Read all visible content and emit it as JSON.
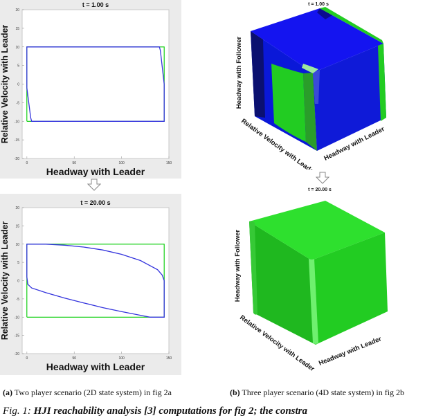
{
  "chart_data": [
    {
      "type": "line",
      "title": "t = 1.00 s",
      "xlabel": "Headway with Leader",
      "ylabel": "Relative Velocity with Leader",
      "xlim": [
        -5,
        150
      ],
      "ylim": [
        -20,
        20
      ],
      "xticks": [
        "0",
        "50",
        "100",
        "150"
      ],
      "yticks": [
        "20",
        "15",
        "10",
        "5",
        "0",
        "-5",
        "-10",
        "-15",
        "-20"
      ],
      "series": [
        {
          "color": "#00cc00",
          "points": [
            [
              0,
              -10
            ],
            [
              0,
              10
            ],
            [
              145,
              10
            ],
            [
              145,
              -10
            ],
            [
              0,
              -10
            ]
          ]
        },
        {
          "color": "#3333dd",
          "points": [
            [
              0,
              -1
            ],
            [
              4,
              -9
            ],
            [
              5,
              -10
            ],
            [
              145,
              -10
            ],
            [
              145,
              0
            ],
            [
              141,
              9
            ],
            [
              140,
              10
            ],
            [
              0,
              10
            ],
            [
              0,
              -1
            ]
          ]
        }
      ]
    },
    {
      "type": "line",
      "title": "t = 20.00 s",
      "xlabel": "Headway with Leader",
      "ylabel": "Relative Velocity with Leader",
      "xlim": [
        -5,
        150
      ],
      "ylim": [
        -20,
        20
      ],
      "xticks": [
        "0",
        "50",
        "100",
        "150"
      ],
      "yticks": [
        "20",
        "15",
        "10",
        "5",
        "0",
        "-5",
        "-10",
        "-15",
        "-20"
      ],
      "series": [
        {
          "color": "#00cc00",
          "points": [
            [
              0,
              -10
            ],
            [
              0,
              10
            ],
            [
              145,
              10
            ],
            [
              145,
              -10
            ],
            [
              0,
              -10
            ]
          ]
        },
        {
          "color": "#3333dd",
          "points": [
            [
              0,
              1
            ],
            [
              1,
              -1
            ],
            [
              5,
              -2
            ],
            [
              20,
              -3.3
            ],
            [
              40,
              -4.8
            ],
            [
              60,
              -6.1
            ],
            [
              80,
              -7.4
            ],
            [
              100,
              -8.5
            ],
            [
              120,
              -9.5
            ],
            [
              130,
              -10
            ],
            [
              145,
              -10
            ],
            [
              145,
              0
            ],
            [
              143,
              1.5
            ],
            [
              138,
              3
            ],
            [
              120,
              5.5
            ],
            [
              100,
              7.2
            ],
            [
              80,
              8.4
            ],
            [
              60,
              9.2
            ],
            [
              40,
              9.7
            ],
            [
              20,
              10
            ],
            [
              0,
              10
            ],
            [
              0,
              1
            ]
          ]
        }
      ]
    },
    {
      "type": "other",
      "title": "t = 1.00 s",
      "xlabel": "Headway with Leader",
      "ylabel": "Relative Velocity with Leader",
      "zlabel": "Headway with Follower",
      "series_colors": [
        "#0000ff",
        "#22cc22"
      ]
    },
    {
      "type": "other",
      "title": "t = 20.00 s",
      "xlabel": "Headway with Leader",
      "ylabel": "Relative Velocity with Leader",
      "zlabel": "Headway with Follower",
      "series_colors": [
        "#22cc22"
      ]
    }
  ],
  "captions": {
    "a_label": "(a)",
    "a_text": "Two player scenario (2D state system) in fig 2a",
    "b_label": "(b)",
    "b_text": "Three player scenario (4D state system) in fig 2b",
    "fig_prefix": "Fig. 1:",
    "fig_text": "HJI reachability analysis [3] computations for fig 2; the constra"
  },
  "icons": {
    "down_arrow": "down-arrow-icon"
  }
}
